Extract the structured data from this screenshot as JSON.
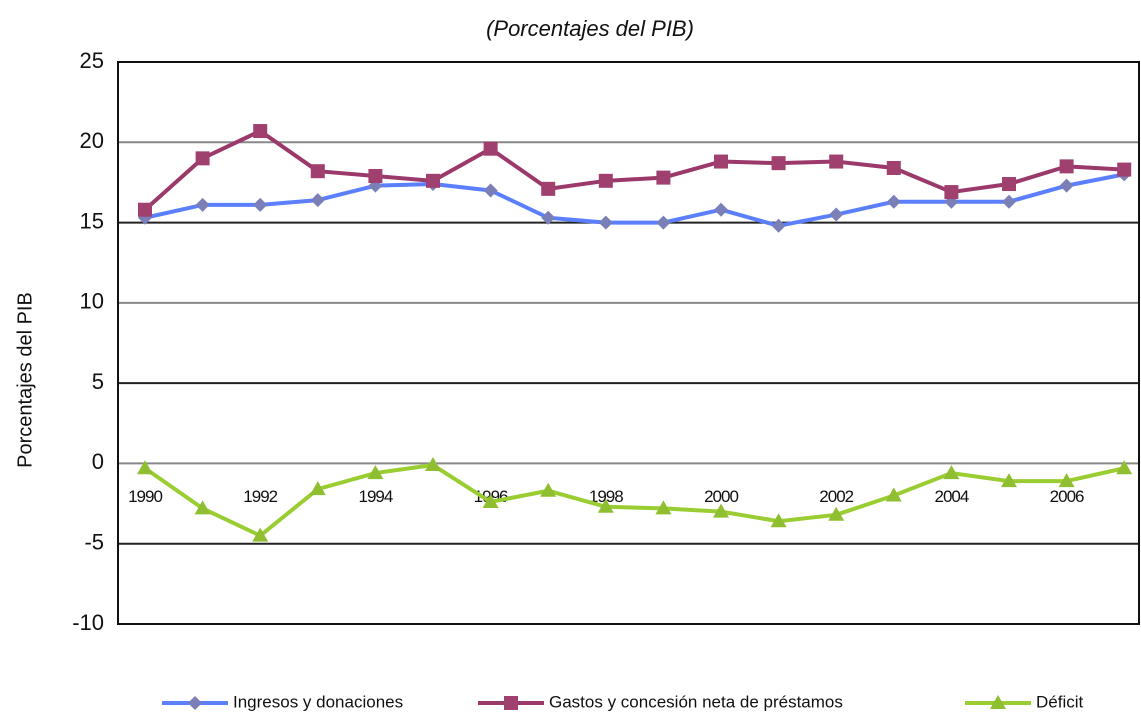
{
  "chart_data": {
    "type": "line",
    "title": "(Porcentajes del PIB)",
    "y_label": "Porcentajes del PIB",
    "categories": [
      "1990",
      null,
      "1992",
      null,
      "1994",
      null,
      "1996",
      null,
      "1998",
      null,
      "2000",
      null,
      "2002",
      null,
      "2004",
      null,
      "2006",
      null
    ],
    "series": [
      {
        "name": "Ingresos y donaciones",
        "color": "#5b7fff",
        "marker": "diamond",
        "marker_color": "#7a7fb8",
        "values": [
          15.3,
          16.1,
          16.1,
          16.4,
          17.3,
          17.4,
          17.0,
          15.3,
          15.0,
          15.0,
          15.8,
          14.8,
          15.5,
          16.3,
          16.3,
          16.3,
          17.3,
          18.0
        ]
      },
      {
        "name": "Gastos y concesión neta de préstamos",
        "color": "#9b3a6a",
        "marker": "square",
        "marker_color": "#a0406f",
        "values": [
          15.8,
          19.0,
          20.7,
          18.2,
          17.9,
          17.6,
          19.6,
          17.1,
          17.6,
          17.8,
          18.8,
          18.7,
          18.8,
          18.4,
          16.9,
          17.4,
          18.5,
          18.3
        ]
      },
      {
        "name": "Déficit",
        "color": "#9acd32",
        "marker": "triangle",
        "marker_color": "#8fbf30",
        "values": [
          -0.3,
          -2.8,
          -4.5,
          -1.6,
          -0.6,
          -0.1,
          -2.4,
          -1.7,
          -2.7,
          -2.8,
          -3.0,
          -3.6,
          -3.2,
          -2.0,
          -0.6,
          -1.1,
          -1.1,
          -0.3
        ]
      }
    ],
    "ylim": [
      -10,
      25
    ],
    "yticks": [
      -10,
      -5,
      0,
      5,
      10,
      15,
      20,
      25
    ],
    "grid": true,
    "legend": "bottom"
  }
}
